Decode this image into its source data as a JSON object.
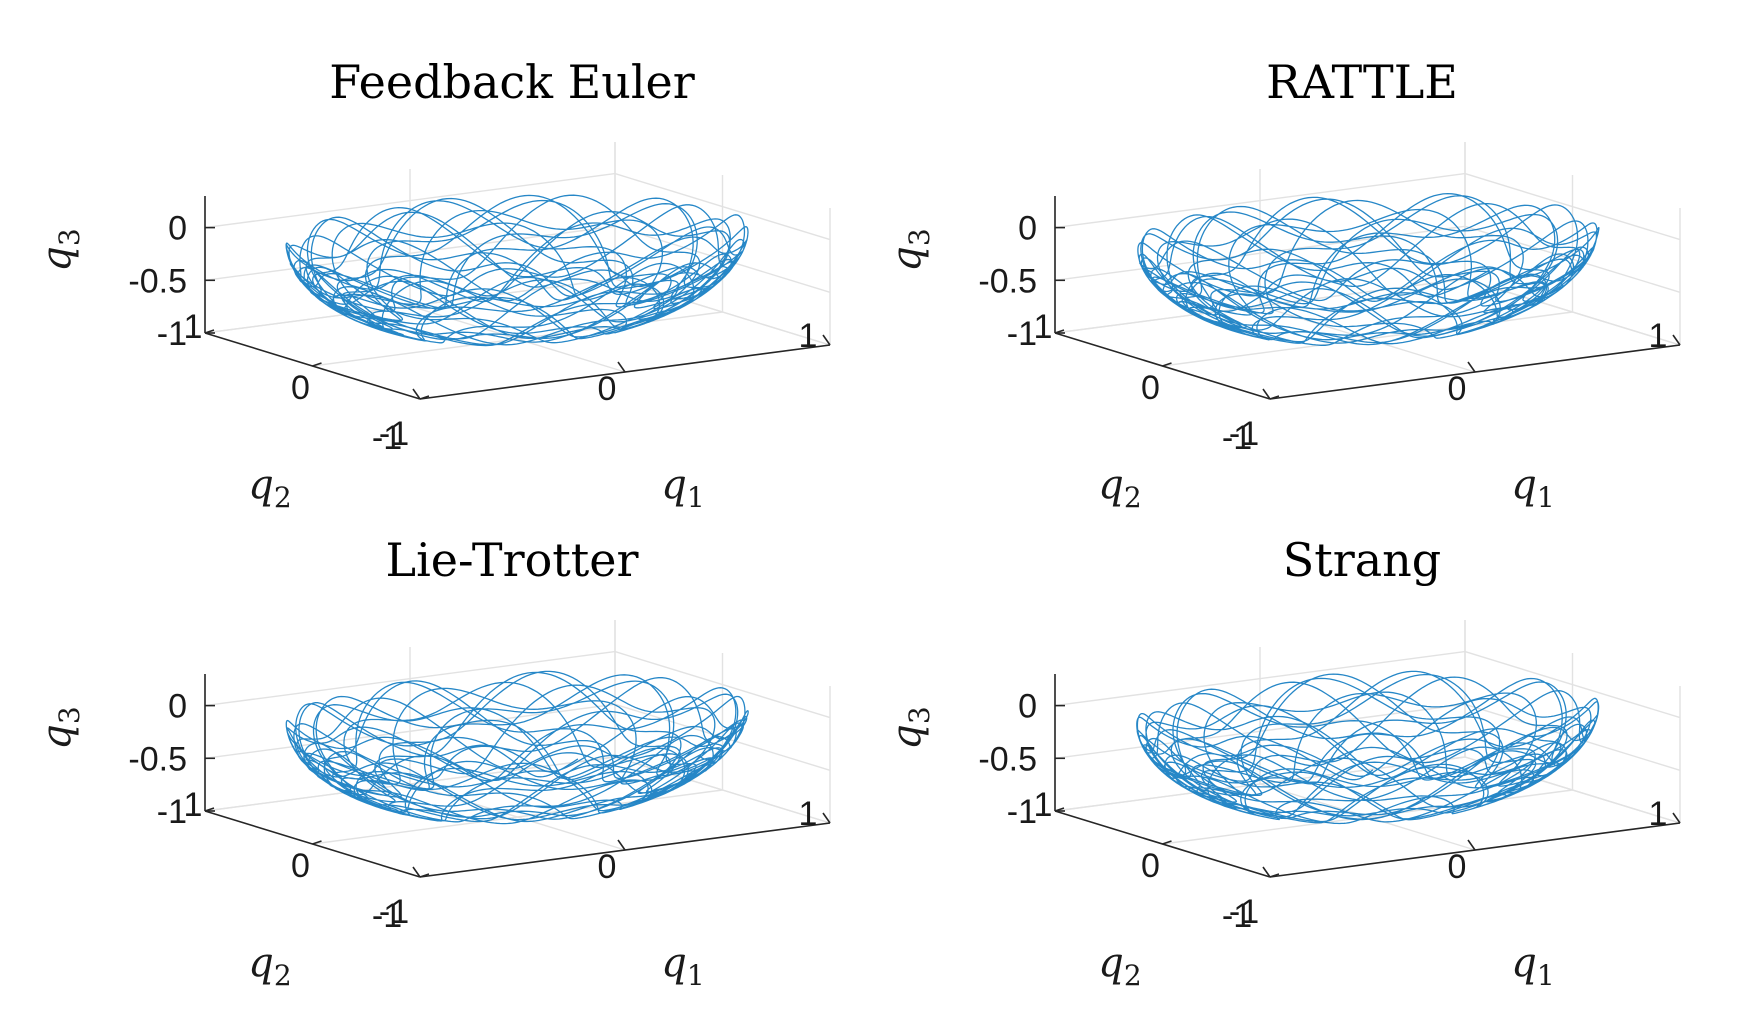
{
  "chart_data": [
    {
      "type": "line3d",
      "title": "Feedback Euler",
      "xlabel": "q1",
      "ylabel": "q2",
      "zlabel": "q3",
      "xlabel_base": "q",
      "xlabel_sub": "1",
      "ylabel_base": "q",
      "ylabel_sub": "2",
      "zlabel_base": "q",
      "zlabel_sub": "3",
      "xlim": [
        -1,
        1
      ],
      "ylim": [
        -1,
        1
      ],
      "zlim": [
        -1,
        0.3
      ],
      "xticks": [
        "-1",
        "0",
        "1"
      ],
      "yticks": [
        "-1",
        "0",
        "1"
      ],
      "zticks": [
        "-1",
        "-0.5",
        "0"
      ],
      "grid": true,
      "series_color": "#0072bd",
      "trajectory": {
        "phi1": 0.0,
        "phi2": 0.0
      }
    },
    {
      "type": "line3d",
      "title": "RATTLE",
      "xlabel": "q1",
      "ylabel": "q2",
      "zlabel": "q3",
      "xlabel_base": "q",
      "xlabel_sub": "1",
      "ylabel_base": "q",
      "ylabel_sub": "2",
      "zlabel_base": "q",
      "zlabel_sub": "3",
      "xlim": [
        -1,
        1
      ],
      "ylim": [
        -1,
        1
      ],
      "zlim": [
        -1,
        0.3
      ],
      "xticks": [
        "-1",
        "0",
        "1"
      ],
      "yticks": [
        "-1",
        "0",
        "1"
      ],
      "zticks": [
        "-1",
        "-0.5",
        "0"
      ],
      "grid": true,
      "series_color": "#0072bd",
      "trajectory": {
        "phi1": 0.35,
        "phi2": 0.2
      }
    },
    {
      "type": "line3d",
      "title": "Lie-Trotter",
      "xlabel": "q1",
      "ylabel": "q2",
      "zlabel": "q3",
      "xlabel_base": "q",
      "xlabel_sub": "1",
      "ylabel_base": "q",
      "ylabel_sub": "2",
      "zlabel_base": "q",
      "zlabel_sub": "3",
      "xlim": [
        -1,
        1
      ],
      "ylim": [
        -1,
        1
      ],
      "zlim": [
        -1,
        0.3
      ],
      "xticks": [
        "-1",
        "0",
        "1"
      ],
      "yticks": [
        "-1",
        "0",
        "1"
      ],
      "zticks": [
        "-1",
        "-0.5",
        "0"
      ],
      "grid": true,
      "series_color": "#0072bd",
      "trajectory": {
        "phi1": 0.7,
        "phi2": 0.45
      }
    },
    {
      "type": "line3d",
      "title": "Strang",
      "xlabel": "q1",
      "ylabel": "q2",
      "zlabel": "q3",
      "xlabel_base": "q",
      "xlabel_sub": "1",
      "ylabel_base": "q",
      "ylabel_sub": "2",
      "zlabel_base": "q",
      "zlabel_sub": "3",
      "xlim": [
        -1,
        1
      ],
      "ylim": [
        -1,
        1
      ],
      "zlim": [
        -1,
        0.3
      ],
      "xticks": [
        "-1",
        "0",
        "1"
      ],
      "yticks": [
        "-1",
        "0",
        "1"
      ],
      "zticks": [
        "-1",
        "-0.5",
        "0"
      ],
      "grid": true,
      "series_color": "#0072bd",
      "trajectory": {
        "phi1": 1.05,
        "phi2": 0.7
      }
    }
  ]
}
